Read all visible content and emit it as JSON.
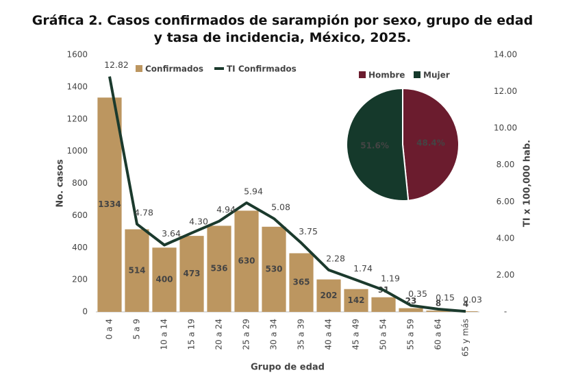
{
  "chart_data": [
    {
      "type": "combo",
      "title": "Gráfica 2. Casos confirmados de sarampión por sexo, grupo de edad y tasa de incidencia, México, 2025.",
      "xlabel": "Grupo de edad",
      "ylabel": "No. casos",
      "y2label": "TI x 100,000 hab.",
      "categories": [
        "0 a 4",
        "5 a 9",
        "10 a 14",
        "15 a 19",
        "20 a 24",
        "25 a 29",
        "30 a 34",
        "35 a 39",
        "40 a 44",
        "45 a 49",
        "50 a 54",
        "55 a 59",
        "60 a 64",
        "65 y más"
      ],
      "series": [
        {
          "name": "Confirmados",
          "type": "bar",
          "color": "#bc9660",
          "values": [
            1334,
            514,
            400,
            473,
            536,
            630,
            530,
            365,
            202,
            142,
            91,
            23,
            8,
            4
          ]
        },
        {
          "name": "TI Confirmados",
          "type": "line",
          "axis": "y2",
          "color": "#1b3a2d",
          "values": [
            12.82,
            4.78,
            3.64,
            4.3,
            4.94,
            5.94,
            5.08,
            3.75,
            2.28,
            1.74,
            1.19,
            0.35,
            0.15,
            0.03
          ],
          "value_labels": [
            "12.82",
            "4.78",
            "3.64",
            "4.30",
            "4.94",
            "5.94",
            "5.08",
            "3.75",
            "2.28",
            "1.74",
            "1.19",
            "0.35",
            "0.15",
            "0.03"
          ]
        }
      ],
      "ylim": [
        0,
        1600
      ],
      "yticks": [
        0,
        200,
        400,
        600,
        800,
        1000,
        1200,
        1400,
        1600
      ],
      "y2lim": [
        0,
        14
      ],
      "y2ticks": [
        {
          "value": 0,
          "label": "-"
        },
        {
          "value": 2,
          "label": "2.00"
        },
        {
          "value": 4,
          "label": "4.00"
        },
        {
          "value": 6,
          "label": "6.00"
        },
        {
          "value": 8,
          "label": "8.00"
        },
        {
          "value": 10,
          "label": "10.00"
        },
        {
          "value": 12,
          "label": "12.00"
        },
        {
          "value": 14,
          "label": "14.00"
        }
      ],
      "grid": false,
      "legend": "top-left"
    },
    {
      "type": "pie",
      "categories": [
        "Hombre",
        "Mujer"
      ],
      "values": [
        48.4,
        51.6
      ],
      "value_labels": [
        "48.4%",
        "51.6%"
      ],
      "colors": [
        "#6b1c2e",
        "#15392b"
      ],
      "legend": "top"
    }
  ]
}
